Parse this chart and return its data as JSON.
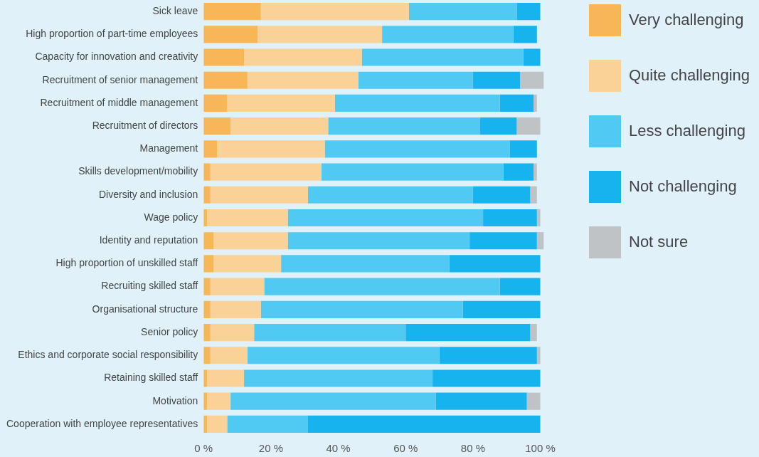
{
  "chart_data": {
    "type": "bar",
    "orientation": "horizontal",
    "stacked": true,
    "categories": [
      "Sick leave",
      "High proportion of part-time employees",
      "Capacity for innovation and creativity",
      "Recruitment of senior management",
      "Recruitment of middle management",
      "Recruitment of directors",
      "Management",
      "Skills development/mobility",
      "Diversity and inclusion",
      "Wage policy",
      "Identity and reputation",
      "High proportion of unskilled staff",
      "Recruiting skilled staff",
      "Organisational structure",
      "Senior policy",
      "Ethics and corporate social responsibility",
      "Retaining skilled staff",
      "Motivation",
      "Cooperation with employee representatives"
    ],
    "series": [
      {
        "name": "Very challenging",
        "color": "#f8b756",
        "values": [
          17,
          16,
          12,
          13,
          7,
          8,
          4,
          2,
          2,
          1,
          3,
          3,
          2,
          2,
          2,
          2,
          1,
          1,
          1
        ]
      },
      {
        "name": "Quite challenging",
        "color": "#fad196",
        "values": [
          44,
          37,
          35,
          33,
          32,
          29,
          32,
          33,
          29,
          24,
          22,
          20,
          16,
          15,
          13,
          11,
          11,
          7,
          6
        ]
      },
      {
        "name": "Less challenging",
        "color": "#50c9f3",
        "values": [
          32,
          39,
          48,
          34,
          49,
          45,
          55,
          54,
          49,
          58,
          54,
          50,
          70,
          60,
          45,
          57,
          56,
          61,
          24
        ]
      },
      {
        "name": "Not challenging",
        "color": "#17b3ef",
        "values": [
          7,
          7,
          5,
          14,
          10,
          11,
          8,
          9,
          17,
          16,
          20,
          27,
          12,
          23,
          37,
          29,
          32,
          27,
          69
        ]
      },
      {
        "name": "Not sure",
        "color": "#c0c3c6",
        "values": [
          null,
          null,
          null,
          7,
          1,
          7,
          null,
          1,
          2,
          1,
          2,
          null,
          null,
          null,
          2,
          1,
          null,
          4,
          null
        ]
      }
    ],
    "xlim": [
      0,
      102
    ],
    "xticks": [
      {
        "value": 0,
        "label": "0 %"
      },
      {
        "value": 20,
        "label": "20 %"
      },
      {
        "value": 40,
        "label": "40 %"
      },
      {
        "value": 60,
        "label": "60 %"
      },
      {
        "value": 80,
        "label": "80 %"
      },
      {
        "value": 100,
        "label": "100 %"
      }
    ],
    "grid": false,
    "legend": "top right"
  }
}
